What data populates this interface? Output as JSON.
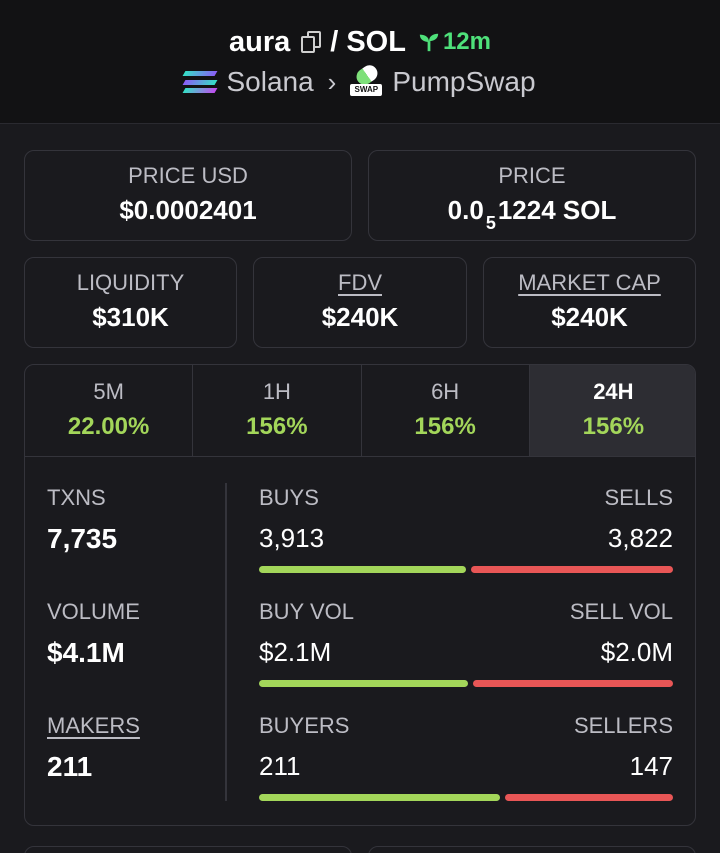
{
  "header": {
    "token": "aura",
    "separator": "/",
    "quote": "SOL",
    "age": "12m",
    "chain": "Solana",
    "dex": "PumpSwap",
    "dex_badge": "SWAP"
  },
  "price_usd": {
    "label": "PRICE USD",
    "value": "$0.0002401"
  },
  "price_native": {
    "label": "PRICE",
    "prefix": "0.0",
    "zeros": "5",
    "suffix": "1224 SOL"
  },
  "liquidity": {
    "label": "LIQUIDITY",
    "value": "$310K"
  },
  "fdv": {
    "label": "FDV",
    "value": "$240K"
  },
  "market_cap": {
    "label": "MARKET CAP",
    "value": "$240K"
  },
  "tabs": [
    {
      "label": "5M",
      "change": "22.00%"
    },
    {
      "label": "1H",
      "change": "156%"
    },
    {
      "label": "6H",
      "change": "156%"
    },
    {
      "label": "24H",
      "change": "156%"
    }
  ],
  "active_tab": "24H",
  "stats": {
    "txns": {
      "label": "TXNS",
      "value": "7,735"
    },
    "volume": {
      "label": "VOLUME",
      "value": "$4.1M"
    },
    "makers": {
      "label": "MAKERS",
      "value": "211"
    }
  },
  "splits": {
    "txns": {
      "left_label": "BUYS",
      "right_label": "SELLS",
      "left_value": "3,913",
      "right_value": "3,822",
      "buy_fraction": 0.506
    },
    "volume": {
      "left_label": "BUY VOL",
      "right_label": "SELL VOL",
      "left_value": "$2.1M",
      "right_value": "$2.0M",
      "buy_fraction": 0.512
    },
    "makers": {
      "left_label": "BUYERS",
      "right_label": "SELLERS",
      "left_value": "211",
      "right_value": "147",
      "buy_fraction": 0.589
    }
  },
  "colors": {
    "positive": "#a3d65a",
    "negative": "#e85656",
    "age": "#4ee07a"
  },
  "icons": {
    "copy": "copy-icon",
    "age": "sprout-icon",
    "chain": "solana-icon",
    "dex": "pumpswap-icon",
    "chevron": "chevron-right-icon"
  }
}
